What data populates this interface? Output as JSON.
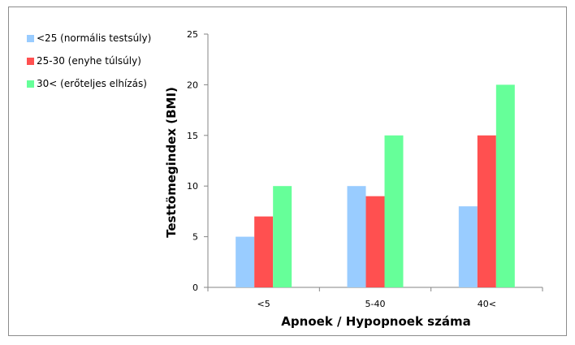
{
  "chart_data": {
    "type": "bar",
    "categories": [
      "<5",
      "5-40",
      "40<"
    ],
    "series": [
      {
        "name": "<25 (normális testsúly)",
        "values": [
          5,
          10,
          8
        ],
        "color": "#99CCFF"
      },
      {
        "name": "25-30 (enyhe túlsúly)",
        "values": [
          7,
          9,
          15
        ],
        "color": "#FF5050"
      },
      {
        "name": "30< (erőteljes elhízás)",
        "values": [
          10,
          15,
          20
        ],
        "color": "#66FF99"
      }
    ],
    "xlabel": "Apnoek / Hypopnoek száma",
    "ylabel": "Testtömegindex (BMI)",
    "ylim": [
      0,
      25
    ],
    "yticks": [
      0,
      5,
      10,
      15,
      20,
      25
    ],
    "grid": false,
    "legend_position": "top-left"
  }
}
